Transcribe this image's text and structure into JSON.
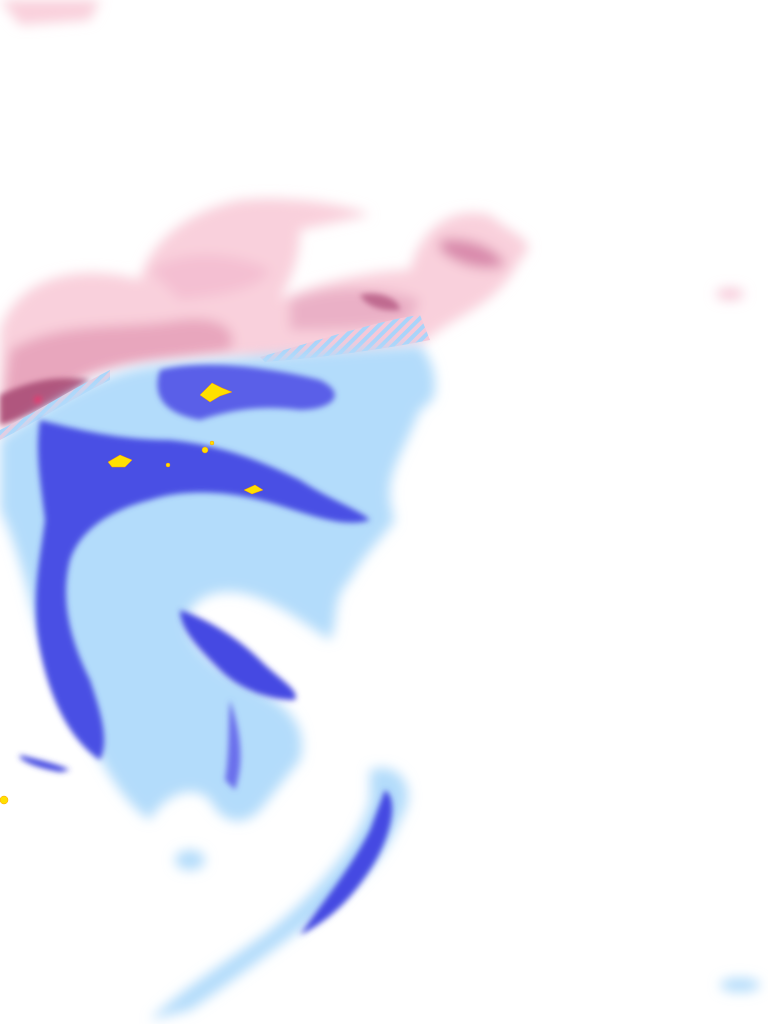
{
  "map": {
    "layer": "precipitation-radar",
    "colors": {
      "snow_light": "#f9d0dc",
      "snow_medium": "#e8a6bd",
      "snow_heavy": "#b0577e",
      "rain_light": "#b3dcfb",
      "rain_medium": "#8a93f2",
      "rain_heavy": "#3a3fe0",
      "rain_very_heavy": "#ffe000",
      "extreme": "#ff0060"
    }
  }
}
